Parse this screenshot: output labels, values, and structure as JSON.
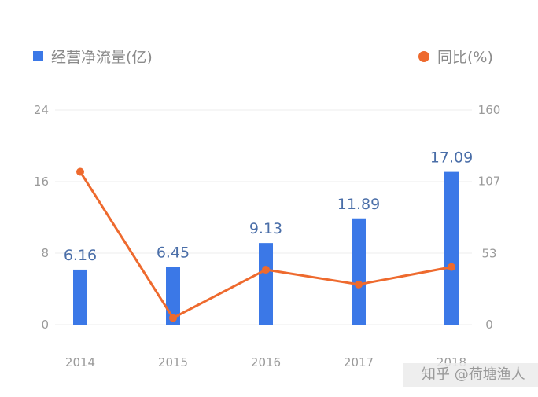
{
  "legend": {
    "bar_label": "经营净流量(亿)",
    "line_label": "同比(%)"
  },
  "axes": {
    "left_ticks": [
      "24",
      "16",
      "8",
      "0"
    ],
    "right_ticks": [
      "160",
      "107",
      "53",
      "0"
    ],
    "x_ticks": [
      "2014",
      "2015",
      "2016",
      "2017",
      "2018"
    ]
  },
  "bar_labels": [
    "6.16",
    "6.45",
    "9.13",
    "11.89",
    "17.09"
  ],
  "watermark": "知乎 @荷塘渔人",
  "colors": {
    "bar": "#3b78e7",
    "line": "#ee6a2e",
    "label": "#4a6ea8",
    "grid": "#eeeeee"
  },
  "chart_data": {
    "type": "bar+line",
    "categories": [
      "2014",
      "2015",
      "2016",
      "2017",
      "2018"
    ],
    "series": [
      {
        "name": "经营净流量(亿)",
        "type": "bar",
        "axis": "left",
        "values": [
          6.16,
          6.45,
          9.13,
          11.89,
          17.09
        ]
      },
      {
        "name": "同比(%)",
        "type": "line",
        "axis": "right",
        "values": [
          114,
          5,
          41,
          30,
          43
        ]
      }
    ],
    "title": "",
    "xlabel": "",
    "ylabel_left": "经营净流量(亿)",
    "ylabel_right": "同比(%)",
    "ylim_left": [
      0,
      24
    ],
    "ylim_right": [
      0,
      160
    ],
    "yticks_left": [
      0,
      8,
      16,
      24
    ],
    "yticks_right": [
      0,
      53,
      107,
      160
    ],
    "grid": true,
    "legend_position": "top"
  }
}
